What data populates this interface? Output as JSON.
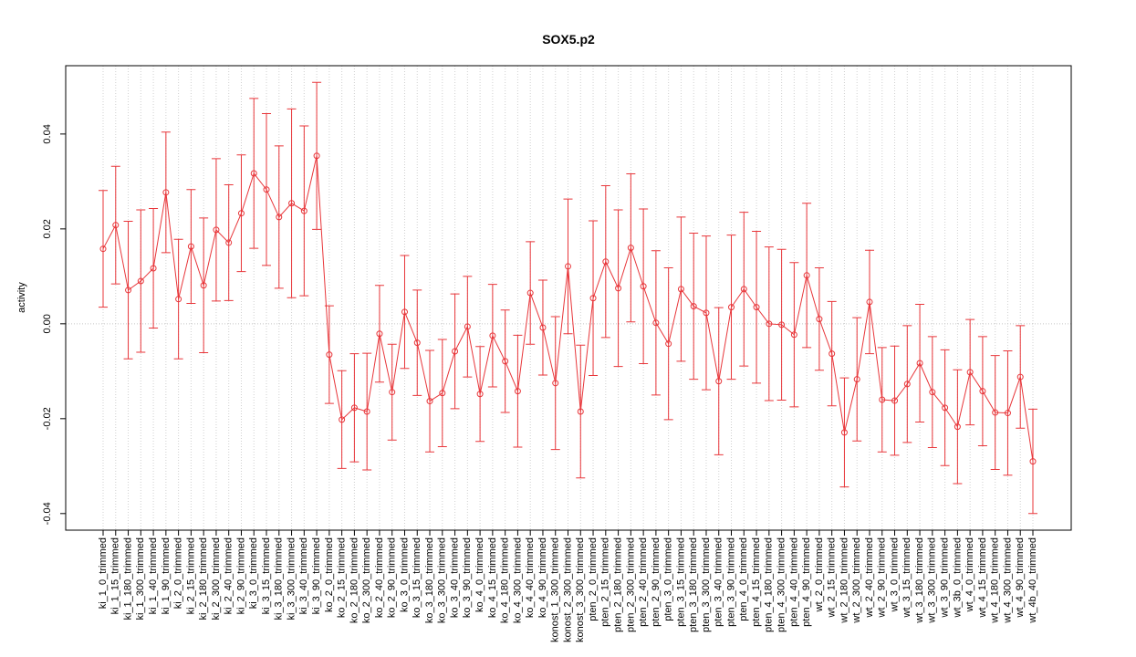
{
  "chart_data": {
    "type": "errorbar",
    "title": "SOX5.p2",
    "y_label": "activity",
    "categories": [
      "ki_1_0_trimmed",
      "ki_1_15_trimmed",
      "ki_1_180_trimmed",
      "ki_1_300_trimmed",
      "ki_1_40_trimmed",
      "ki_1_90_trimmed",
      "ki_2_0_trimmed",
      "ki_2_15_trimmed",
      "ki_2_180_trimmed",
      "ki_2_300_trimmed",
      "ki_2_40_trimmed",
      "ki_2_90_trimmed",
      "ki_3_0_trimmed",
      "ki_3_15_trimmed",
      "ki_3_180_trimmed",
      "ki_3_300_trimmed",
      "ki_3_40_trimmed",
      "ki_3_90_trimmed",
      "ko_2_0_trimmed",
      "ko_2_15_trimmed",
      "ko_2_180_trimmed",
      "ko_2_300_trimmed",
      "ko_2_40_trimmed",
      "ko_2_90_trimmed",
      "ko_3_0_trimmed",
      "ko_3_15_trimmed",
      "ko_3_180_trimmed",
      "ko_3_300_trimmed",
      "ko_3_40_trimmed",
      "ko_3_90_trimmed",
      "ko_4_0_trimmed",
      "ko_4_15_trimmed",
      "ko_4_180_trimmed",
      "ko_4_300_trimmed",
      "ko_4_40_trimmed",
      "ko_4_90_trimmed",
      "konost_1_300_trimmed",
      "konost_2_300_trimmed",
      "konost_3_300_trimmed",
      "pten_2_0_trimmed",
      "pten_2_15_trimmed",
      "pten_2_180_trimmed",
      "pten_2_300_trimmed",
      "pten_2_40_trimmed",
      "pten_2_90_trimmed",
      "pten_3_0_trimmed",
      "pten_3_15_trimmed",
      "pten_3_180_trimmed",
      "pten_3_300_trimmed",
      "pten_3_40_trimmed",
      "pten_3_90_trimmed",
      "pten_4_0_trimmed",
      "pten_4_15_trimmed",
      "pten_4_180_trimmed",
      "pten_4_300_trimmed",
      "pten_4_40_trimmed",
      "pten_4_90_trimmed",
      "wt_2_0_trimmed",
      "wt_2_15_trimmed",
      "wt_2_180_trimmed",
      "wt_2_300_trimmed",
      "wt_2_40_trimmed",
      "wt_2_90_trimmed",
      "wt_3_0_trimmed",
      "wt_3_15_trimmed",
      "wt_3_180_trimmed",
      "wt_3_300_trimmed",
      "wt_3_90_trimmed",
      "wt_3b_0_trimmed",
      "wt_4_0_trimmed",
      "wt_4_15_trimmed",
      "wt_4_180_trimmed",
      "wt_4_300_trimmed",
      "wt_4_90_trimmed",
      "wt_4b_40_trimmed"
    ],
    "values": [
      0.0158,
      0.0208,
      0.0071,
      0.009,
      0.0117,
      0.0277,
      0.0052,
      0.0163,
      0.0081,
      0.0198,
      0.0171,
      0.0233,
      0.0317,
      0.0283,
      0.0225,
      0.0254,
      0.0238,
      0.0354,
      -0.0065,
      -0.0202,
      -0.0177,
      -0.0185,
      -0.0021,
      -0.0144,
      0.0025,
      -0.004,
      -0.0163,
      -0.0146,
      -0.0058,
      -0.0006,
      -0.0148,
      -0.0025,
      -0.0079,
      -0.0142,
      0.0065,
      -0.0008,
      -0.0125,
      0.0121,
      -0.0185,
      0.0054,
      0.0131,
      0.0075,
      0.016,
      0.0079,
      0.0002,
      -0.0042,
      0.0073,
      0.0037,
      0.0023,
      -0.0121,
      0.0035,
      0.0073,
      0.0035,
      0.0,
      -0.0002,
      -0.0023,
      0.0102,
      0.001,
      -0.0063,
      -0.0229,
      -0.0117,
      0.0046,
      -0.016,
      -0.0162,
      -0.0127,
      -0.0083,
      -0.0144,
      -0.0177,
      -0.0217,
      -0.0102,
      -0.0142,
      -0.0187,
      -0.0188,
      -0.0112,
      -0.029
    ],
    "errors": [
      0.0123,
      0.0124,
      0.0145,
      0.015,
      0.0126,
      0.0127,
      0.0126,
      0.012,
      0.0142,
      0.015,
      0.0122,
      0.0123,
      0.0158,
      0.016,
      0.015,
      0.0199,
      0.0179,
      0.0155,
      0.0103,
      0.0103,
      0.0114,
      0.0123,
      0.0102,
      0.0101,
      0.0119,
      0.0111,
      0.0107,
      0.0113,
      0.0121,
      0.0106,
      0.01,
      0.0108,
      0.0108,
      0.0118,
      0.0108,
      0.01,
      0.014,
      0.0142,
      0.014,
      0.0163,
      0.016,
      0.0165,
      0.0156,
      0.0163,
      0.0152,
      0.016,
      0.0152,
      0.0154,
      0.0162,
      0.0155,
      0.0152,
      0.0162,
      0.016,
      0.0162,
      0.0159,
      0.0152,
      0.0152,
      0.0108,
      0.011,
      0.0115,
      0.013,
      0.0109,
      0.011,
      0.0115,
      0.0123,
      0.0124,
      0.0117,
      0.0122,
      0.012,
      0.0111,
      0.0115,
      0.012,
      0.0131,
      0.0108,
      0.011
    ],
    "color": "#e8363a",
    "ylim": [
      -0.0435,
      0.0544
    ],
    "yticks": [
      -0.04,
      -0.02,
      {
        "value": 0,
        "label": "0.00"
      },
      0.02,
      0.04
    ],
    "grid": true,
    "reference_line": 0
  }
}
